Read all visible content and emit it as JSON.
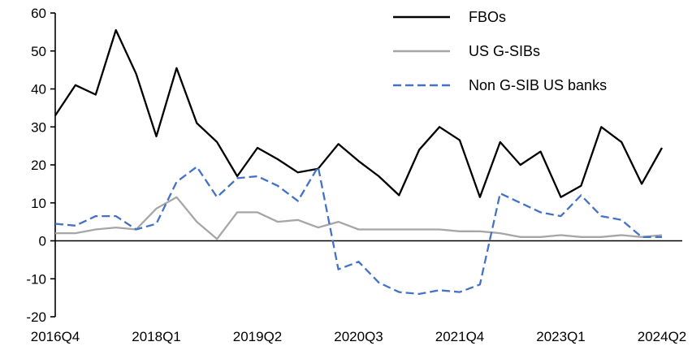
{
  "chart_data": {
    "type": "line",
    "title": "",
    "xlabel": "",
    "ylabel": "",
    "grid": false,
    "legend_position": "top-right-inside",
    "ylim": [
      -20,
      60
    ],
    "y_ticks": [
      60,
      50,
      40,
      30,
      20,
      10,
      0,
      -10,
      -20
    ],
    "categories": [
      "2016Q4",
      "2017Q1",
      "2017Q2",
      "2017Q3",
      "2017Q4",
      "2018Q1",
      "2018Q2",
      "2018Q3",
      "2018Q4",
      "2019Q1",
      "2019Q2",
      "2019Q3",
      "2019Q4",
      "2020Q1",
      "2020Q2",
      "2020Q3",
      "2020Q4",
      "2021Q1",
      "2021Q2",
      "2021Q3",
      "2021Q4",
      "2022Q1",
      "2022Q2",
      "2022Q3",
      "2022Q4",
      "2023Q1",
      "2023Q2",
      "2023Q3",
      "2023Q4",
      "2024Q1",
      "2024Q2"
    ],
    "x_tick_labels": [
      "2016Q4",
      "2018Q1",
      "2019Q2",
      "2020Q3",
      "2021Q4",
      "2023Q1",
      "2024Q2"
    ],
    "x_tick_indices": [
      0,
      5,
      10,
      15,
      20,
      25,
      30
    ],
    "series": [
      {
        "name": "FBOs",
        "color": "#000000",
        "style": "solid",
        "values": [
          33,
          41,
          38.5,
          55.5,
          44,
          27.5,
          45.5,
          31,
          26,
          17,
          24.5,
          21.5,
          18,
          19,
          25.5,
          21,
          17,
          12,
          24,
          30,
          26.5,
          11.5,
          26,
          20,
          23.5,
          11.5,
          14.5,
          30,
          26,
          15,
          24.5
        ]
      },
      {
        "name": "US G-SIBs",
        "color": "#a6a6a6",
        "style": "solid",
        "values": [
          2,
          2,
          3,
          3.5,
          3,
          8.5,
          11.5,
          5,
          0.5,
          7.5,
          7.5,
          5,
          5.5,
          3.5,
          5,
          3,
          3,
          3,
          3,
          3,
          2.5,
          2.5,
          2,
          1,
          1,
          1.5,
          1,
          1,
          1.5,
          1,
          1.5
        ]
      },
      {
        "name": "Non G-SIB US banks",
        "color": "#4472c4",
        "style": "dashed",
        "dash": "10 5",
        "values": [
          4.5,
          4,
          6.5,
          6.5,
          3,
          4.5,
          15.5,
          19.5,
          11.5,
          16.5,
          17,
          14.5,
          10.5,
          19.5,
          -7.5,
          -5.5,
          -11,
          -13.5,
          -14,
          -13,
          -13.5,
          -11.5,
          12.5,
          10,
          7.5,
          6.5,
          12,
          6.5,
          5.5,
          1,
          1
        ]
      }
    ]
  }
}
